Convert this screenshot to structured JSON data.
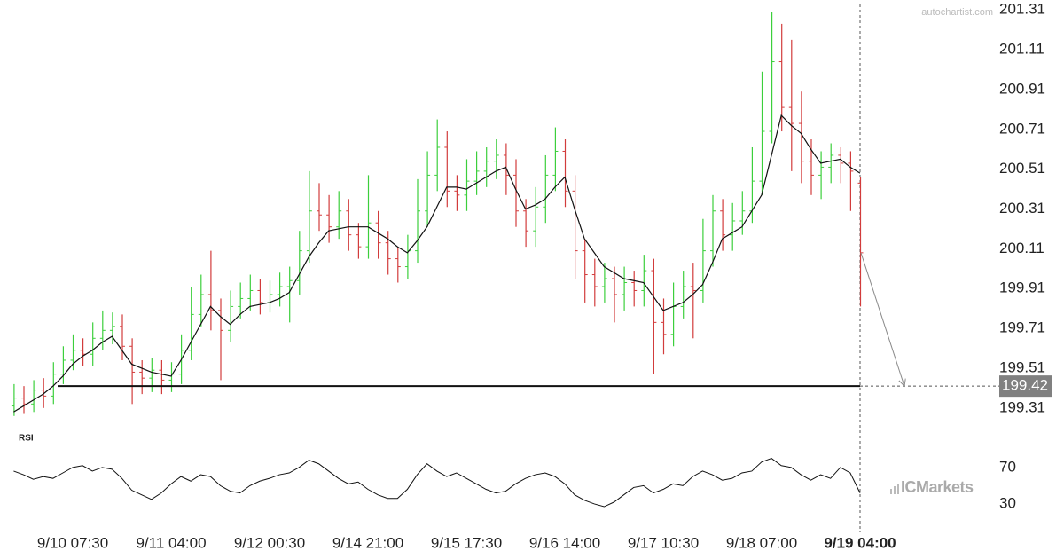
{
  "chart_data": [
    {
      "type": "ohlc",
      "watermark": "autochartist.com",
      "brand": "ICMarkets",
      "categories": [
        null,
        null,
        null,
        null,
        null,
        null,
        "9/10 07:30",
        null,
        null,
        null,
        null,
        null,
        null,
        null,
        null,
        null,
        "9/11 04:00",
        null,
        null,
        null,
        null,
        null,
        null,
        null,
        null,
        null,
        "9/12 00:30",
        null,
        null,
        null,
        null,
        null,
        null,
        null,
        null,
        null,
        "9/14 21:00",
        null,
        null,
        null,
        null,
        null,
        null,
        null,
        null,
        null,
        "9/15 17:30",
        null,
        null,
        null,
        null,
        null,
        null,
        null,
        null,
        null,
        "9/16 14:00",
        null,
        null,
        null,
        null,
        null,
        null,
        null,
        null,
        null,
        "9/17 10:30",
        null,
        null,
        null,
        null,
        null,
        null,
        null,
        null,
        null,
        "9/18 07:00",
        null,
        null,
        null,
        null,
        null,
        null,
        null,
        null,
        null,
        "9/19 04:00"
      ],
      "open": [
        199.32,
        199.36,
        199.33,
        199.4,
        199.37,
        199.48,
        199.55,
        199.6,
        199.58,
        199.66,
        199.7,
        199.72,
        199.62,
        199.49,
        199.46,
        199.5,
        199.45,
        199.48,
        199.6,
        199.78,
        199.88,
        199.8,
        199.7,
        199.82,
        199.86,
        199.9,
        199.84,
        199.88,
        199.92,
        199.95,
        200.1,
        200.3,
        200.28,
        200.22,
        200.3,
        200.18,
        200.12,
        200.24,
        200.14,
        200.06,
        200.02,
        200.1,
        200.3,
        200.48,
        200.62,
        200.4,
        200.38,
        200.45,
        200.5,
        200.55,
        200.58,
        200.48,
        200.3,
        200.2,
        200.32,
        200.48,
        200.6,
        200.4,
        200.1,
        199.98,
        199.92,
        199.96,
        199.88,
        199.94,
        199.9,
        200.0,
        199.74,
        199.68,
        199.82,
        199.92,
        199.9,
        200.1,
        200.3,
        200.18,
        200.25,
        200.3,
        200.45,
        200.7,
        201.05,
        200.82,
        200.74,
        200.55,
        200.48,
        200.52,
        200.58,
        200.54,
        200.44
      ],
      "high": [
        199.43,
        199.42,
        199.45,
        199.46,
        199.54,
        199.62,
        199.68,
        199.66,
        199.74,
        199.8,
        199.79,
        199.78,
        199.66,
        199.55,
        199.56,
        199.55,
        199.54,
        199.68,
        199.92,
        199.98,
        200.1,
        199.86,
        199.9,
        199.94,
        199.98,
        199.96,
        199.95,
        199.99,
        200.02,
        200.2,
        200.5,
        200.44,
        200.38,
        200.4,
        200.36,
        200.24,
        200.48,
        200.3,
        200.2,
        200.12,
        200.18,
        200.46,
        200.6,
        200.76,
        200.7,
        200.48,
        200.56,
        200.6,
        200.62,
        200.66,
        200.64,
        200.56,
        200.36,
        200.42,
        200.58,
        200.72,
        200.66,
        200.48,
        200.16,
        200.06,
        200.04,
        200.02,
        200.02,
        200.0,
        200.08,
        200.06,
        199.86,
        199.94,
        200.0,
        200.04,
        200.26,
        200.38,
        200.36,
        200.34,
        200.4,
        200.62,
        201.0,
        201.3,
        201.24,
        201.16,
        200.9,
        200.66,
        200.6,
        200.64,
        200.62,
        200.6,
        200.47
      ],
      "low": [
        199.27,
        199.28,
        199.29,
        199.31,
        199.33,
        199.43,
        199.5,
        199.52,
        199.52,
        199.6,
        199.63,
        199.55,
        199.33,
        199.38,
        199.39,
        199.38,
        199.39,
        199.43,
        199.55,
        199.72,
        199.7,
        199.45,
        199.64,
        199.76,
        199.8,
        199.78,
        199.79,
        199.82,
        199.74,
        199.88,
        200.04,
        200.2,
        200.14,
        200.16,
        200.1,
        200.06,
        200.06,
        200.06,
        199.98,
        199.94,
        199.96,
        200.04,
        200.22,
        200.4,
        200.32,
        200.3,
        200.3,
        200.38,
        200.42,
        200.46,
        200.38,
        200.22,
        200.12,
        200.12,
        200.24,
        200.4,
        200.32,
        199.96,
        199.84,
        199.82,
        199.84,
        199.74,
        199.8,
        199.82,
        199.82,
        199.48,
        199.58,
        199.62,
        199.76,
        199.66,
        199.84,
        200.02,
        200.1,
        200.1,
        200.18,
        200.24,
        200.38,
        200.64,
        200.7,
        200.5,
        200.44,
        200.38,
        200.36,
        200.44,
        200.44,
        200.3,
        199.82
      ],
      "close": [
        199.36,
        199.33,
        199.4,
        199.37,
        199.48,
        199.55,
        199.6,
        199.58,
        199.66,
        199.7,
        199.72,
        199.62,
        199.49,
        199.46,
        199.5,
        199.45,
        199.48,
        199.6,
        199.78,
        199.88,
        199.8,
        199.7,
        199.82,
        199.86,
        199.9,
        199.84,
        199.88,
        199.92,
        199.95,
        200.1,
        200.3,
        200.28,
        200.22,
        200.3,
        200.18,
        200.12,
        200.24,
        200.14,
        200.06,
        200.02,
        200.1,
        200.3,
        200.48,
        200.62,
        200.4,
        200.38,
        200.45,
        200.5,
        200.55,
        200.58,
        200.48,
        200.3,
        200.2,
        200.32,
        200.48,
        200.6,
        200.4,
        200.1,
        199.98,
        199.92,
        199.96,
        199.88,
        199.94,
        199.9,
        200.0,
        199.74,
        199.68,
        199.82,
        199.92,
        199.9,
        200.1,
        200.3,
        200.18,
        200.25,
        200.3,
        200.45,
        200.7,
        201.05,
        200.82,
        200.74,
        200.55,
        200.48,
        200.52,
        200.58,
        200.54,
        200.5,
        200.09
      ],
      "up_color": "#3ccf3c",
      "down_color": "#d23c3c",
      "moving_average": {
        "color": "#111111",
        "values": [
          199.29,
          199.32,
          199.35,
          199.38,
          199.42,
          199.47,
          199.53,
          199.57,
          199.6,
          199.64,
          199.67,
          199.6,
          199.53,
          199.51,
          199.49,
          199.48,
          199.47,
          199.55,
          199.64,
          199.73,
          199.82,
          199.77,
          199.73,
          199.78,
          199.82,
          199.83,
          199.84,
          199.86,
          199.89,
          199.98,
          200.07,
          200.14,
          200.2,
          200.21,
          200.22,
          200.22,
          200.22,
          200.19,
          200.16,
          200.12,
          200.09,
          200.15,
          200.22,
          200.32,
          200.42,
          200.42,
          200.41,
          200.44,
          200.47,
          200.5,
          200.52,
          200.41,
          200.31,
          200.33,
          200.36,
          200.42,
          200.47,
          200.31,
          200.16,
          200.09,
          200.02,
          199.99,
          199.96,
          199.95,
          199.94,
          199.87,
          199.8,
          199.82,
          199.84,
          199.88,
          199.93,
          200.04,
          200.16,
          200.19,
          200.22,
          200.3,
          200.38,
          200.58,
          200.78,
          200.73,
          200.69,
          200.61,
          200.54,
          200.55,
          200.56,
          200.52,
          200.49
        ]
      },
      "level": 199.42,
      "ylim": [
        199.22,
        201.36
      ],
      "yticks": [
        199.31,
        199.51,
        199.71,
        199.91,
        200.11,
        200.31,
        200.51,
        200.71,
        200.91,
        201.11,
        201.31
      ]
    },
    {
      "type": "line",
      "title": "RSI",
      "color": "#111111",
      "values": [
        66,
        62,
        57,
        60,
        58,
        64,
        70,
        72,
        66,
        70,
        68,
        58,
        45,
        40,
        35,
        42,
        52,
        60,
        55,
        62,
        60,
        50,
        44,
        42,
        50,
        55,
        58,
        62,
        64,
        70,
        78,
        74,
        66,
        58,
        52,
        54,
        46,
        40,
        36,
        36,
        46,
        62,
        74,
        66,
        60,
        64,
        58,
        52,
        46,
        42,
        44,
        52,
        58,
        62,
        64,
        60,
        52,
        40,
        34,
        30,
        27,
        32,
        40,
        48,
        50,
        42,
        46,
        52,
        50,
        60,
        66,
        62,
        56,
        58,
        64,
        66,
        76,
        80,
        72,
        70,
        62,
        56,
        62,
        58,
        70,
        64,
        42
      ],
      "ylim": [
        10,
        100
      ],
      "yticks": [
        30,
        70
      ]
    }
  ]
}
